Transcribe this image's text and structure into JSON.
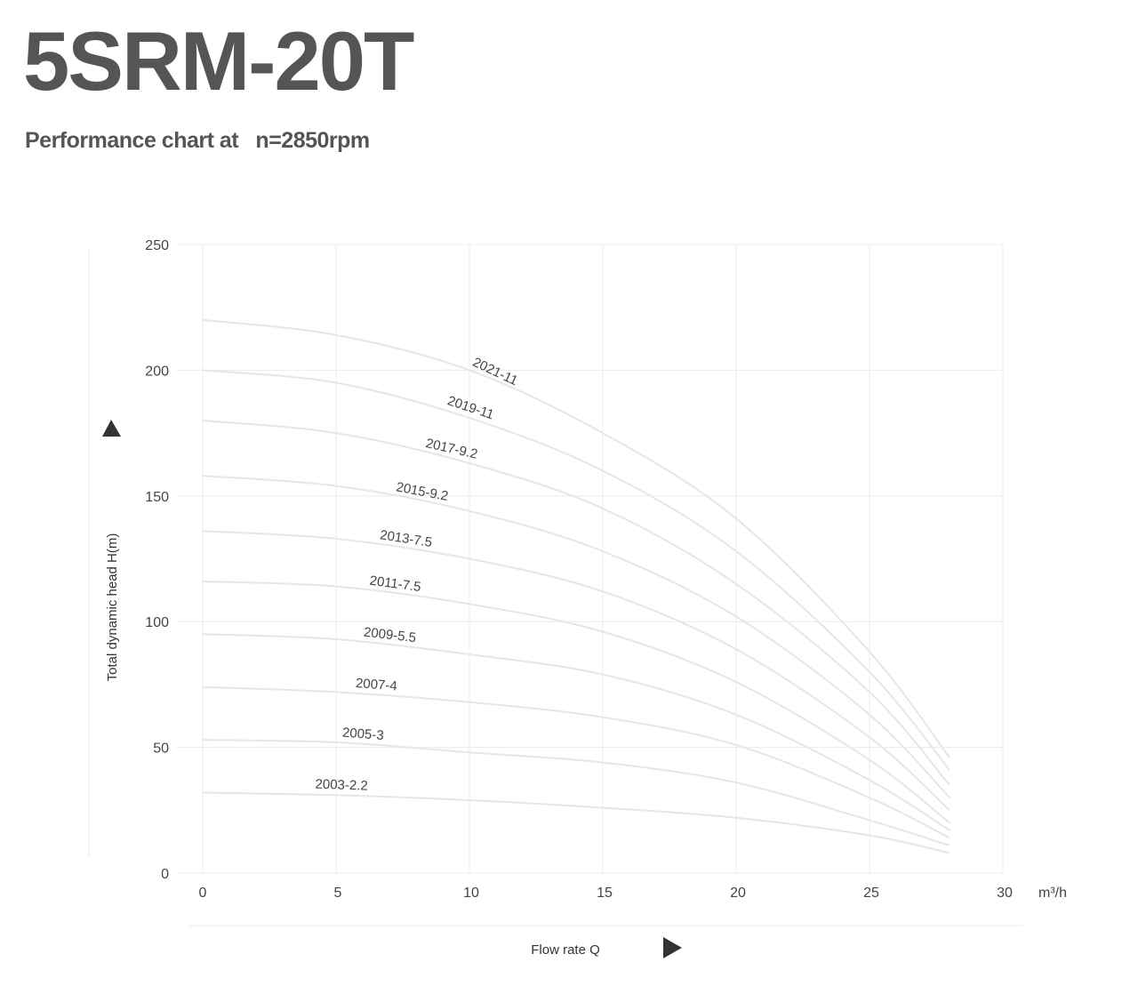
{
  "header": {
    "title": "5SRM-20T",
    "subtitle": "Performance chart at   n=2850rpm"
  },
  "chart_data": {
    "type": "line",
    "title": "5SRM-20T",
    "subtitle": "Performance chart at   n=2850rpm",
    "xlabel": "Flow rate Q",
    "xunit": "m³/h",
    "ylabel": "Total dynamic head H(m)",
    "xlim": [
      0,
      30
    ],
    "ylim": [
      0,
      250
    ],
    "xticks": [
      "0",
      "5",
      "10",
      "15",
      "20",
      "25",
      "30"
    ],
    "yticks": [
      "0",
      "50",
      "100",
      "150",
      "200",
      "250"
    ],
    "grid": true,
    "x": [
      0,
      5,
      10,
      15,
      20,
      25,
      28
    ],
    "series": [
      {
        "name": "2003-2.2",
        "values": [
          32,
          31,
          29,
          26,
          22,
          15,
          8
        ]
      },
      {
        "name": "2005-3",
        "values": [
          53,
          52,
          48,
          44,
          36,
          21,
          11
        ]
      },
      {
        "name": "2007-4",
        "values": [
          74,
          72,
          68,
          62,
          51,
          30,
          14
        ]
      },
      {
        "name": "2009-5.5",
        "values": [
          95,
          93,
          87,
          79,
          63,
          37,
          17
        ]
      },
      {
        "name": "2011-7.5",
        "values": [
          116,
          114,
          107,
          96,
          76,
          45,
          20
        ]
      },
      {
        "name": "2013-7.5",
        "values": [
          136,
          133,
          125,
          112,
          89,
          54,
          25
        ]
      },
      {
        "name": "2015-9.2",
        "values": [
          158,
          154,
          144,
          128,
          102,
          63,
          30
        ]
      },
      {
        "name": "2017-9.2",
        "values": [
          180,
          175,
          163,
          145,
          115,
          72,
          35
        ]
      },
      {
        "name": "2019-11",
        "values": [
          200,
          195,
          181,
          160,
          128,
          80,
          41
        ]
      },
      {
        "name": "2021-11",
        "values": [
          220,
          214,
          200,
          175,
          141,
          88,
          46
        ]
      }
    ],
    "label_anchor_x": [
      5.2,
      6,
      6.5,
      7,
      7.2,
      7.6,
      8.2,
      9.3,
      10,
      10.9
    ]
  }
}
